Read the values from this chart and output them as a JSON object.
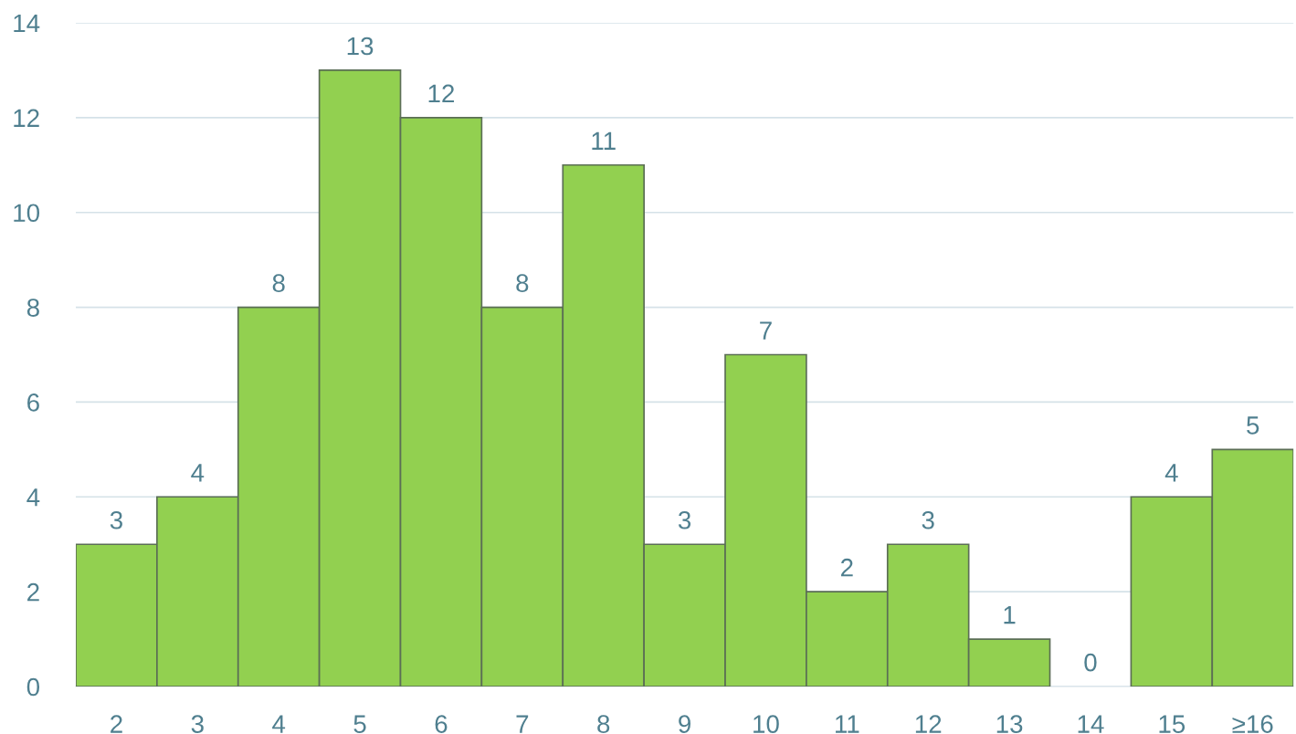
{
  "chart_data": {
    "type": "bar",
    "categories": [
      "2",
      "3",
      "4",
      "5",
      "6",
      "7",
      "8",
      "9",
      "10",
      "11",
      "12",
      "13",
      "14",
      "15",
      "≥16"
    ],
    "values": [
      3,
      4,
      8,
      13,
      12,
      8,
      11,
      3,
      7,
      2,
      3,
      1,
      0,
      4,
      5
    ],
    "color": "#92d050",
    "ylim": [
      0,
      14
    ],
    "yticks": [
      0,
      2,
      4,
      6,
      8,
      10,
      12,
      14
    ],
    "grid": "y",
    "data_labels": true
  }
}
